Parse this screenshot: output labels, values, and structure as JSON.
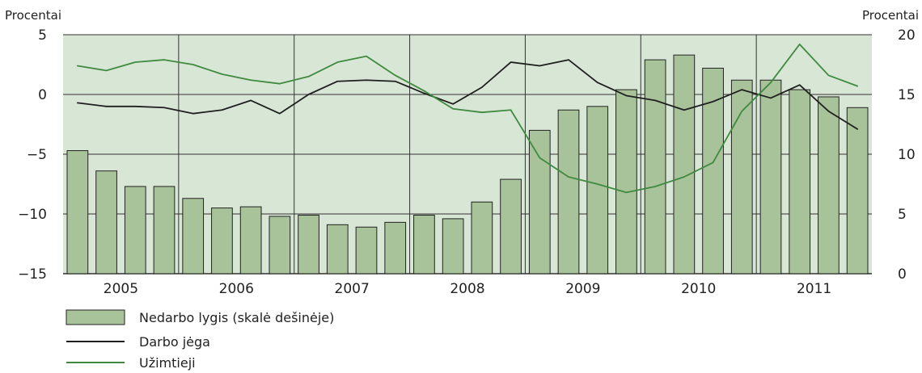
{
  "chart_data": {
    "type": "bar",
    "title": "",
    "y_left_label": "Procentai",
    "y_right_label": "Procentai",
    "y_left_ticks": [
      "5",
      "0",
      "−5",
      "−10",
      "−15"
    ],
    "y_right_ticks": [
      "20",
      "15",
      "10",
      "5",
      "0"
    ],
    "y_left_range": [
      -15,
      5
    ],
    "y_right_range": [
      0,
      20
    ],
    "x_labels": [
      "2005",
      "2006",
      "2007",
      "2008",
      "2009",
      "2010",
      "2011"
    ],
    "grid": true,
    "legend_position": "bottom-left",
    "colors": {
      "background": "#d8e6d6",
      "bar_fill": "#a8c29a",
      "bar_stroke": "#222222",
      "darbo_jega": "#1f1f1f",
      "uzimtieji": "#3f8a3f",
      "grid": "#333333"
    },
    "series": [
      {
        "name": "Nedarbo lygis (skalė dešinėje)",
        "type": "bar",
        "axis": "right",
        "values": [
          10.3,
          8.6,
          7.3,
          7.3,
          6.3,
          5.5,
          5.6,
          4.8,
          4.9,
          4.1,
          3.9,
          4.3,
          4.9,
          4.6,
          6.0,
          7.9,
          12.0,
          13.7,
          14.0,
          15.4,
          17.9,
          18.3,
          17.2,
          16.2,
          16.2,
          15.4,
          14.8,
          13.9
        ]
      },
      {
        "name": "Darbo jėga",
        "type": "line",
        "axis": "left",
        "values": [
          -0.7,
          -1.0,
          -1.0,
          -1.1,
          -1.6,
          -1.3,
          -0.5,
          -1.6,
          0.0,
          1.1,
          1.2,
          1.1,
          0.1,
          -0.8,
          0.6,
          2.7,
          2.4,
          2.9,
          1.0,
          -0.1,
          -0.5,
          -1.3,
          -0.6,
          0.4,
          -0.3,
          0.8,
          -1.4,
          -2.9
        ]
      },
      {
        "name": "Užimtieji",
        "type": "line",
        "axis": "left",
        "values": [
          2.4,
          2.0,
          2.7,
          2.9,
          2.5,
          1.7,
          1.2,
          0.9,
          1.5,
          2.7,
          3.2,
          1.6,
          0.3,
          -1.2,
          -1.5,
          -1.3,
          -5.3,
          -6.9,
          -7.5,
          -8.2,
          -7.7,
          -6.9,
          -5.7,
          -1.4,
          1.0,
          4.2,
          1.6,
          0.7
        ]
      }
    ]
  }
}
